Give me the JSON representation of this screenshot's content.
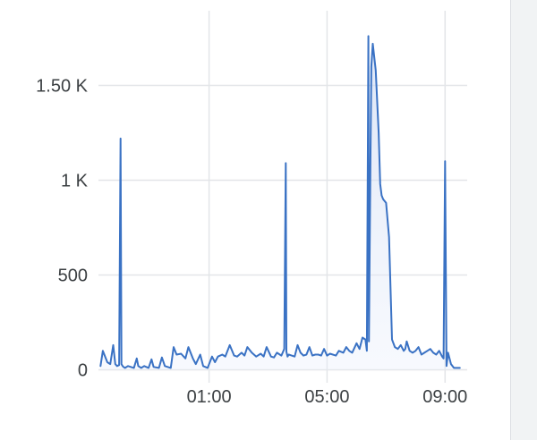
{
  "chart_data": {
    "type": "area",
    "title": "",
    "xlabel": "",
    "ylabel": "",
    "ylim": [
      0,
      1800
    ],
    "xlim": [
      -2.75,
      9.75
    ],
    "grid": true,
    "y_ticks": [
      {
        "value": 0,
        "label": "0"
      },
      {
        "value": 500,
        "label": "500"
      },
      {
        "value": 1000,
        "label": "1 K"
      },
      {
        "value": 1500,
        "label": "1.50 K"
      }
    ],
    "x_ticks": [
      {
        "value": 1,
        "label": "01:00"
      },
      {
        "value": 5,
        "label": "05:00"
      },
      {
        "value": 9,
        "label": "09:00"
      }
    ],
    "series": [
      {
        "color": "#3a72c4",
        "x": [
          -2.68,
          -2.6,
          -2.45,
          -2.35,
          -2.25,
          -2.18,
          -2.12,
          -2.05,
          -2.0,
          -1.97,
          -1.93,
          -1.9,
          -1.85,
          -1.75,
          -1.55,
          -1.45,
          -1.4,
          -1.3,
          -1.2,
          -1.05,
          -0.95,
          -0.88,
          -0.7,
          -0.6,
          -0.5,
          -0.3,
          -0.2,
          -0.1,
          0.05,
          0.2,
          0.3,
          0.45,
          0.55,
          0.7,
          0.8,
          0.95,
          1.1,
          1.2,
          1.3,
          1.45,
          1.55,
          1.7,
          1.85,
          1.95,
          2.1,
          2.2,
          2.3,
          2.45,
          2.6,
          2.75,
          2.85,
          2.95,
          3.1,
          3.2,
          3.3,
          3.45,
          3.55,
          3.6,
          3.62,
          3.66,
          3.7,
          3.8,
          3.9,
          4.0,
          4.1,
          4.2,
          4.3,
          4.4,
          4.5,
          4.6,
          4.7,
          4.8,
          4.9,
          5.0,
          5.1,
          5.3,
          5.4,
          5.55,
          5.65,
          5.75,
          5.85,
          6.0,
          6.1,
          6.2,
          6.3,
          6.35,
          6.4,
          6.42,
          6.47,
          6.5,
          6.55,
          6.65,
          6.75,
          6.8,
          6.85,
          6.9,
          7.0,
          7.1,
          7.2,
          7.3,
          7.4,
          7.5,
          7.6,
          7.65,
          7.7,
          7.8,
          7.9,
          8.0,
          8.1,
          8.2,
          8.3,
          8.4,
          8.5,
          8.6,
          8.7,
          8.8,
          8.9,
          8.95,
          9.0,
          9.05,
          9.1,
          9.2,
          9.3,
          9.4,
          9.5
        ],
        "values": [
          20,
          100,
          40,
          30,
          130,
          30,
          20,
          25,
          1220,
          30,
          20,
          15,
          10,
          20,
          10,
          60,
          20,
          10,
          20,
          10,
          55,
          15,
          10,
          65,
          20,
          10,
          120,
          80,
          85,
          60,
          120,
          60,
          30,
          80,
          20,
          10,
          70,
          40,
          70,
          80,
          70,
          130,
          75,
          70,
          90,
          75,
          120,
          90,
          70,
          85,
          70,
          120,
          70,
          65,
          90,
          75,
          110,
          1090,
          95,
          70,
          80,
          75,
          70,
          130,
          90,
          75,
          80,
          120,
          75,
          80,
          80,
          75,
          110,
          75,
          85,
          75,
          100,
          90,
          120,
          100,
          90,
          140,
          110,
          170,
          160,
          100,
          1760,
          150,
          1100,
          1600,
          1720,
          1580,
          1250,
          980,
          920,
          900,
          880,
          700,
          160,
          120,
          110,
          130,
          100,
          110,
          150,
          100,
          90,
          100,
          120,
          80,
          90,
          100,
          110,
          90,
          80,
          100,
          70,
          60,
          1100,
          20,
          90,
          30,
          10,
          10,
          10
        ]
      }
    ]
  }
}
